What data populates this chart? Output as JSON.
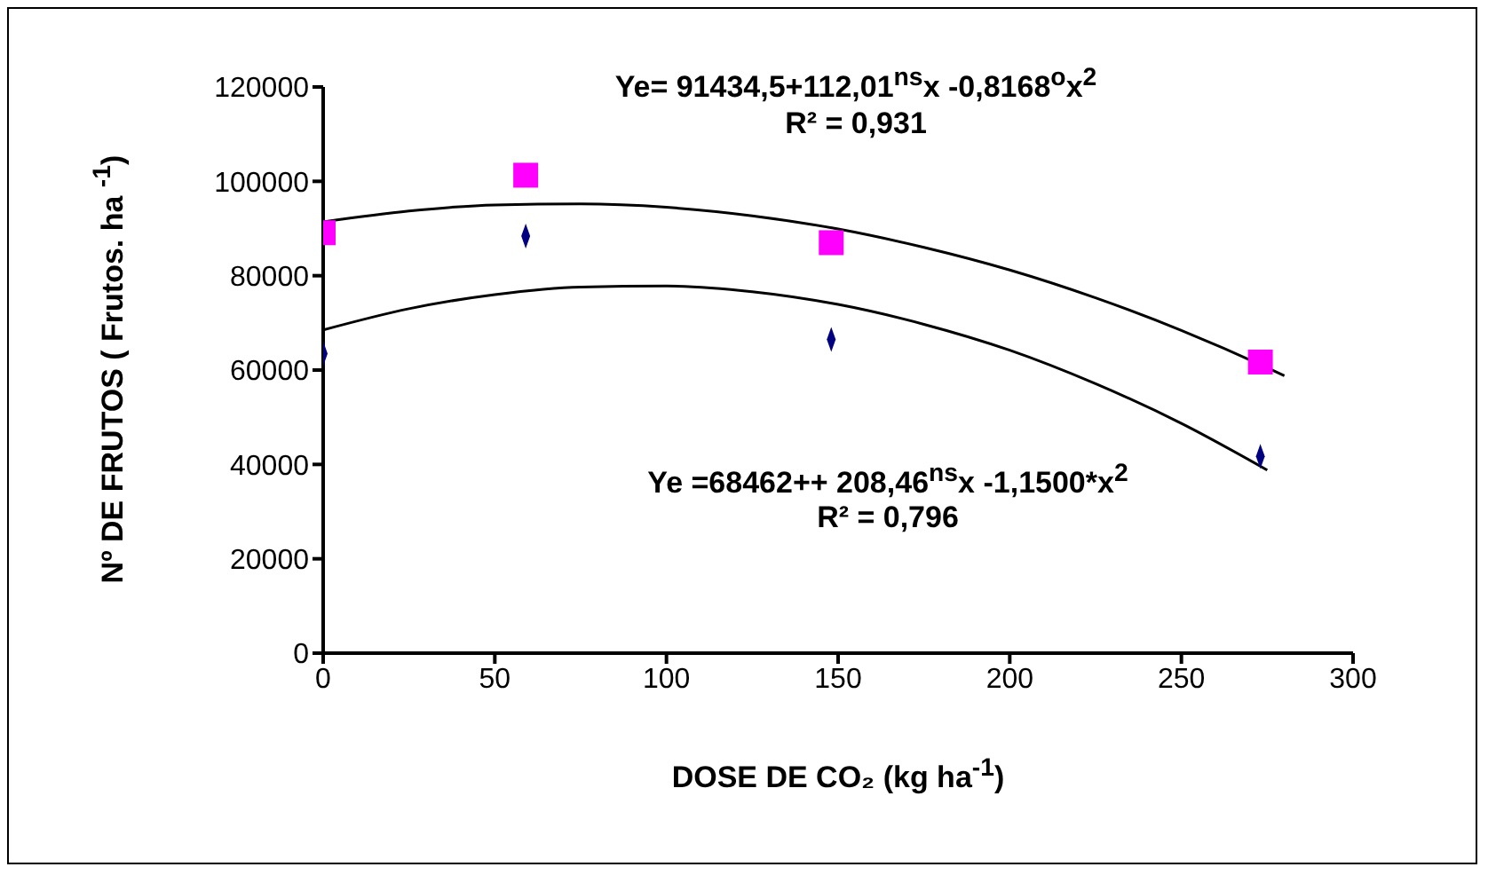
{
  "chart_data": {
    "type": "scatter",
    "xlabel": "DOSE  DE CO₂ (kg ha$^{-1}$)",
    "ylabel": "Nº DE FRUTOS ( Frutos. ha  $^{-1}$)",
    "annotations": [
      "Ye= 91434,5+112,01$^{ns}$x -0,8168$^{o}$x$^{2}$",
      "R² = 0,931",
      "Ye =68462++ 208,46$^{ns}$x -1,1500*x$^{2}$",
      "R² = 0,796"
    ],
    "xlim": [
      0,
      300
    ],
    "xticks": [
      0,
      50,
      100,
      150,
      200,
      250,
      300
    ],
    "ylim": [
      0,
      120000
    ],
    "yticks": [
      0,
      20000,
      40000,
      60000,
      80000,
      100000,
      120000
    ],
    "grid": false,
    "series": [
      {
        "color": "#ff00ff",
        "marker": "square",
        "x": [
          0,
          59,
          148,
          273
        ],
        "values": [
          89100,
          101300,
          87000,
          61700
        ]
      },
      {
        "color": "#000080",
        "marker": "diamond",
        "x": [
          0,
          59,
          148,
          273
        ],
        "values": [
          63500,
          88400,
          66500,
          41700
        ]
      },
      {
        "type": "line",
        "color": "#000000",
        "marker": "none",
        "x": [
          0,
          25,
          50,
          75,
          100,
          125,
          150,
          175,
          200,
          225,
          250,
          275,
          280
        ],
        "values": [
          91400,
          93700,
          95000,
          95200,
          94500,
          92700,
          89900,
          86000,
          81200,
          75300,
          68400,
          60500,
          58800
        ]
      },
      {
        "type": "line",
        "color": "#000000",
        "marker": "none",
        "x": [
          0,
          25,
          50,
          75,
          100,
          125,
          150,
          175,
          200,
          225,
          250,
          275
        ],
        "values": [
          68500,
          73000,
          76000,
          77600,
          77800,
          76600,
          73900,
          69700,
          64200,
          57100,
          48700,
          38800
        ]
      }
    ]
  }
}
